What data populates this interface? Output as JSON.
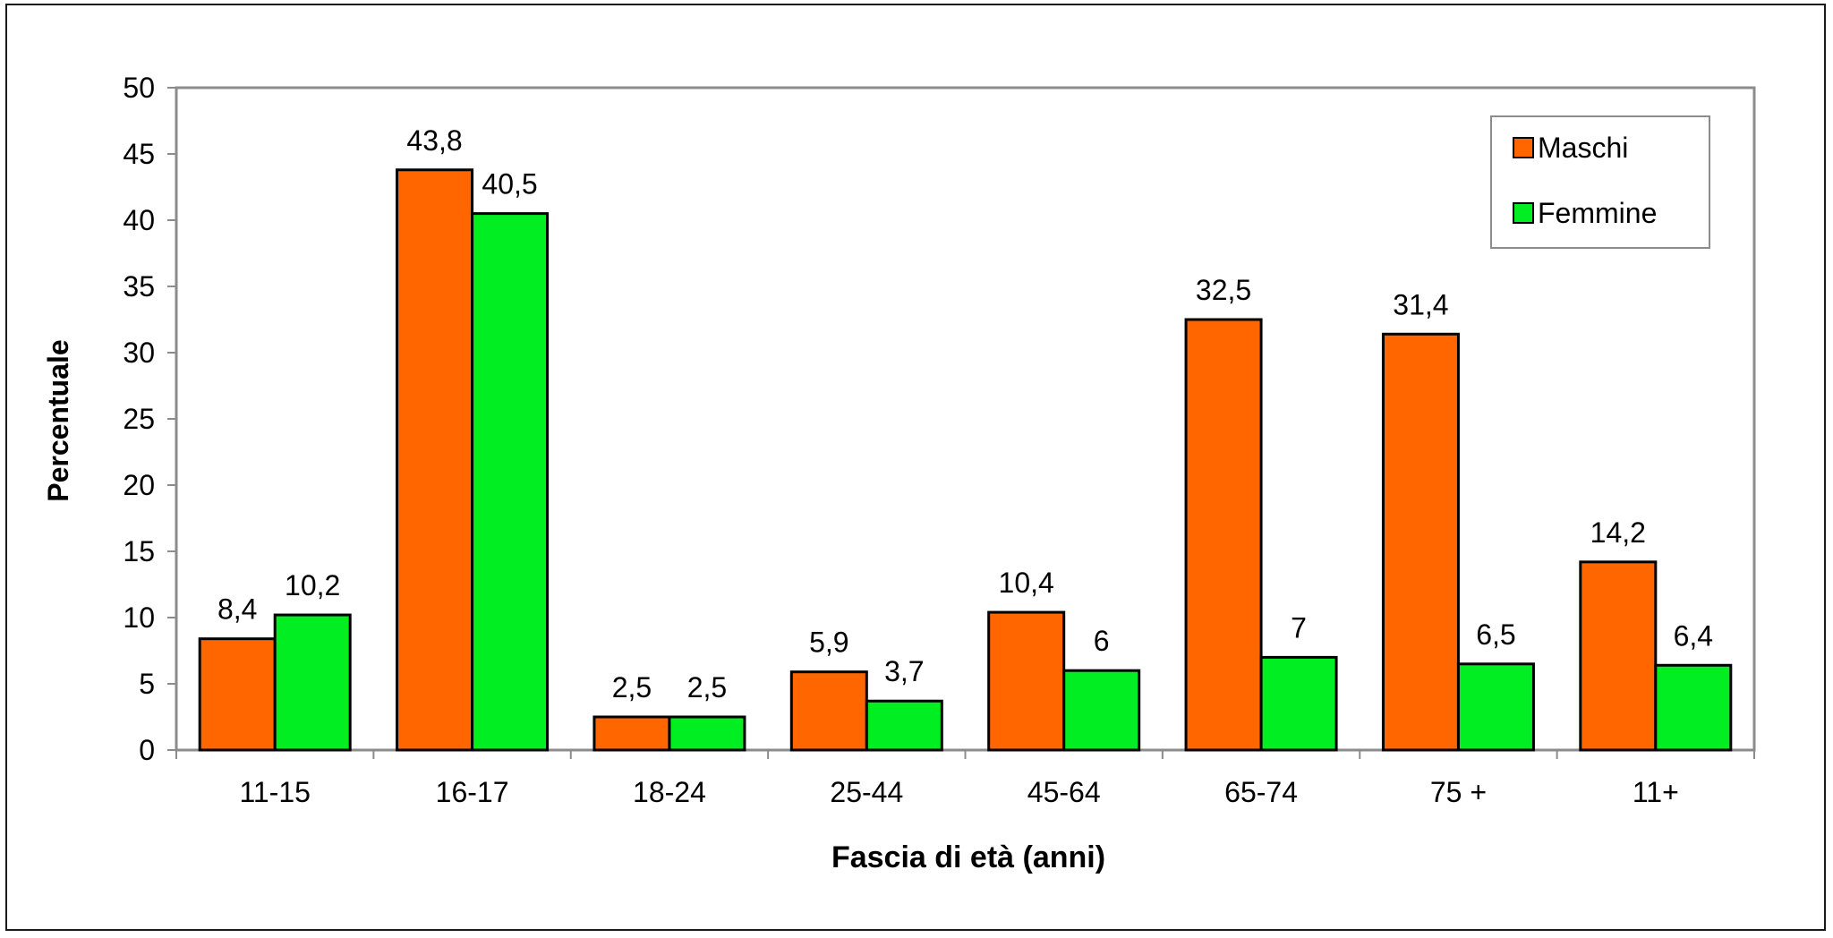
{
  "chart_data": {
    "type": "bar",
    "categories": [
      "11-15",
      "16-17",
      "18-24",
      "25-44",
      "45-64",
      "65-74",
      "75 +",
      "11+"
    ],
    "series": [
      {
        "name": "Maschi",
        "values": [
          8.4,
          43.8,
          2.5,
          5.9,
          10.4,
          32.5,
          31.4,
          14.2
        ],
        "labels": [
          "8,4",
          "43,8",
          "2,5",
          "5,9",
          "10,4",
          "32,5",
          "31,4",
          "14,2"
        ]
      },
      {
        "name": "Femmine",
        "values": [
          10.2,
          40.5,
          2.5,
          3.7,
          6.0,
          7.0,
          6.5,
          6.4
        ],
        "labels": [
          "10,2",
          "40,5",
          "2,5",
          "3,7",
          "6",
          "7",
          "6,5",
          "6,4"
        ]
      }
    ],
    "xlabel": "Fascia di età (anni)",
    "ylabel": "Percentuale",
    "ylim": [
      0,
      50
    ],
    "yticks": [
      0,
      5,
      10,
      15,
      20,
      25,
      30,
      35,
      40,
      45,
      50
    ],
    "grid": false,
    "legend_position": "top-right"
  },
  "colors": {
    "Maschi": "#ff6600",
    "Femmine": "#00ee22",
    "axis": "#8c8c8c"
  }
}
